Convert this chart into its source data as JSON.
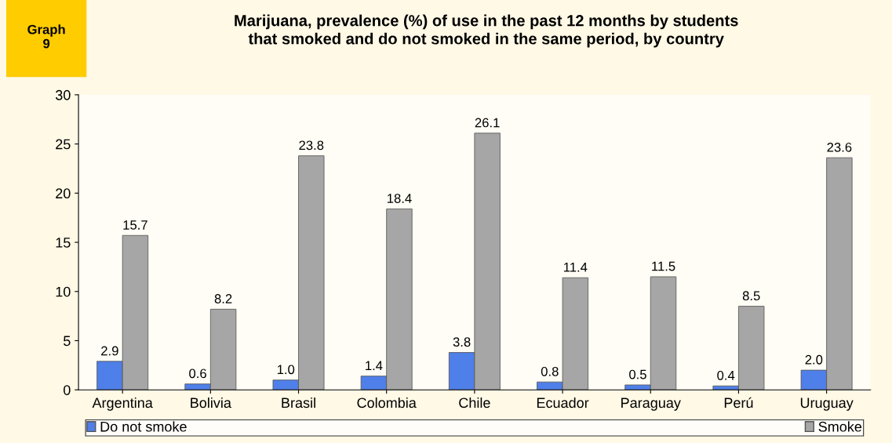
{
  "chart_data": {
    "type": "bar",
    "title": "Marijuana, prevalence (%) of use in the past 12 months by students\nthat smoked and do not smoked in the same period, by country",
    "annotations": [
      "Graph\n9"
    ],
    "categories": [
      "Argentina",
      "Bolivia",
      "Brasil",
      "Colombia",
      "Chile",
      "Ecuador",
      "Paraguay",
      "Perú",
      "Uruguay"
    ],
    "series": [
      {
        "name": "Do not smoke",
        "color": "#4f7fe8",
        "values": [
          2.9,
          0.6,
          1.0,
          1.4,
          3.8,
          0.8,
          0.5,
          0.4,
          2.0
        ],
        "value_labels": [
          "2.9",
          "0.6",
          "1.0",
          "1.4",
          "3.8",
          "0.8",
          "0.5",
          "0.4",
          "2.0"
        ]
      },
      {
        "name": "Smoke",
        "color": "#a6a6a6",
        "values": [
          15.7,
          8.2,
          23.8,
          18.4,
          26.1,
          11.4,
          11.5,
          8.5,
          23.6
        ],
        "value_labels": [
          "15.7",
          "8.2",
          "23.8",
          "18.4",
          "26.1",
          "11.4",
          "11.5",
          "8.5",
          "23.6"
        ]
      }
    ],
    "ylim": [
      0,
      30
    ],
    "yticks": [
      0,
      5,
      10,
      15,
      20,
      25,
      30
    ],
    "grid": false,
    "legend": "bottom"
  }
}
